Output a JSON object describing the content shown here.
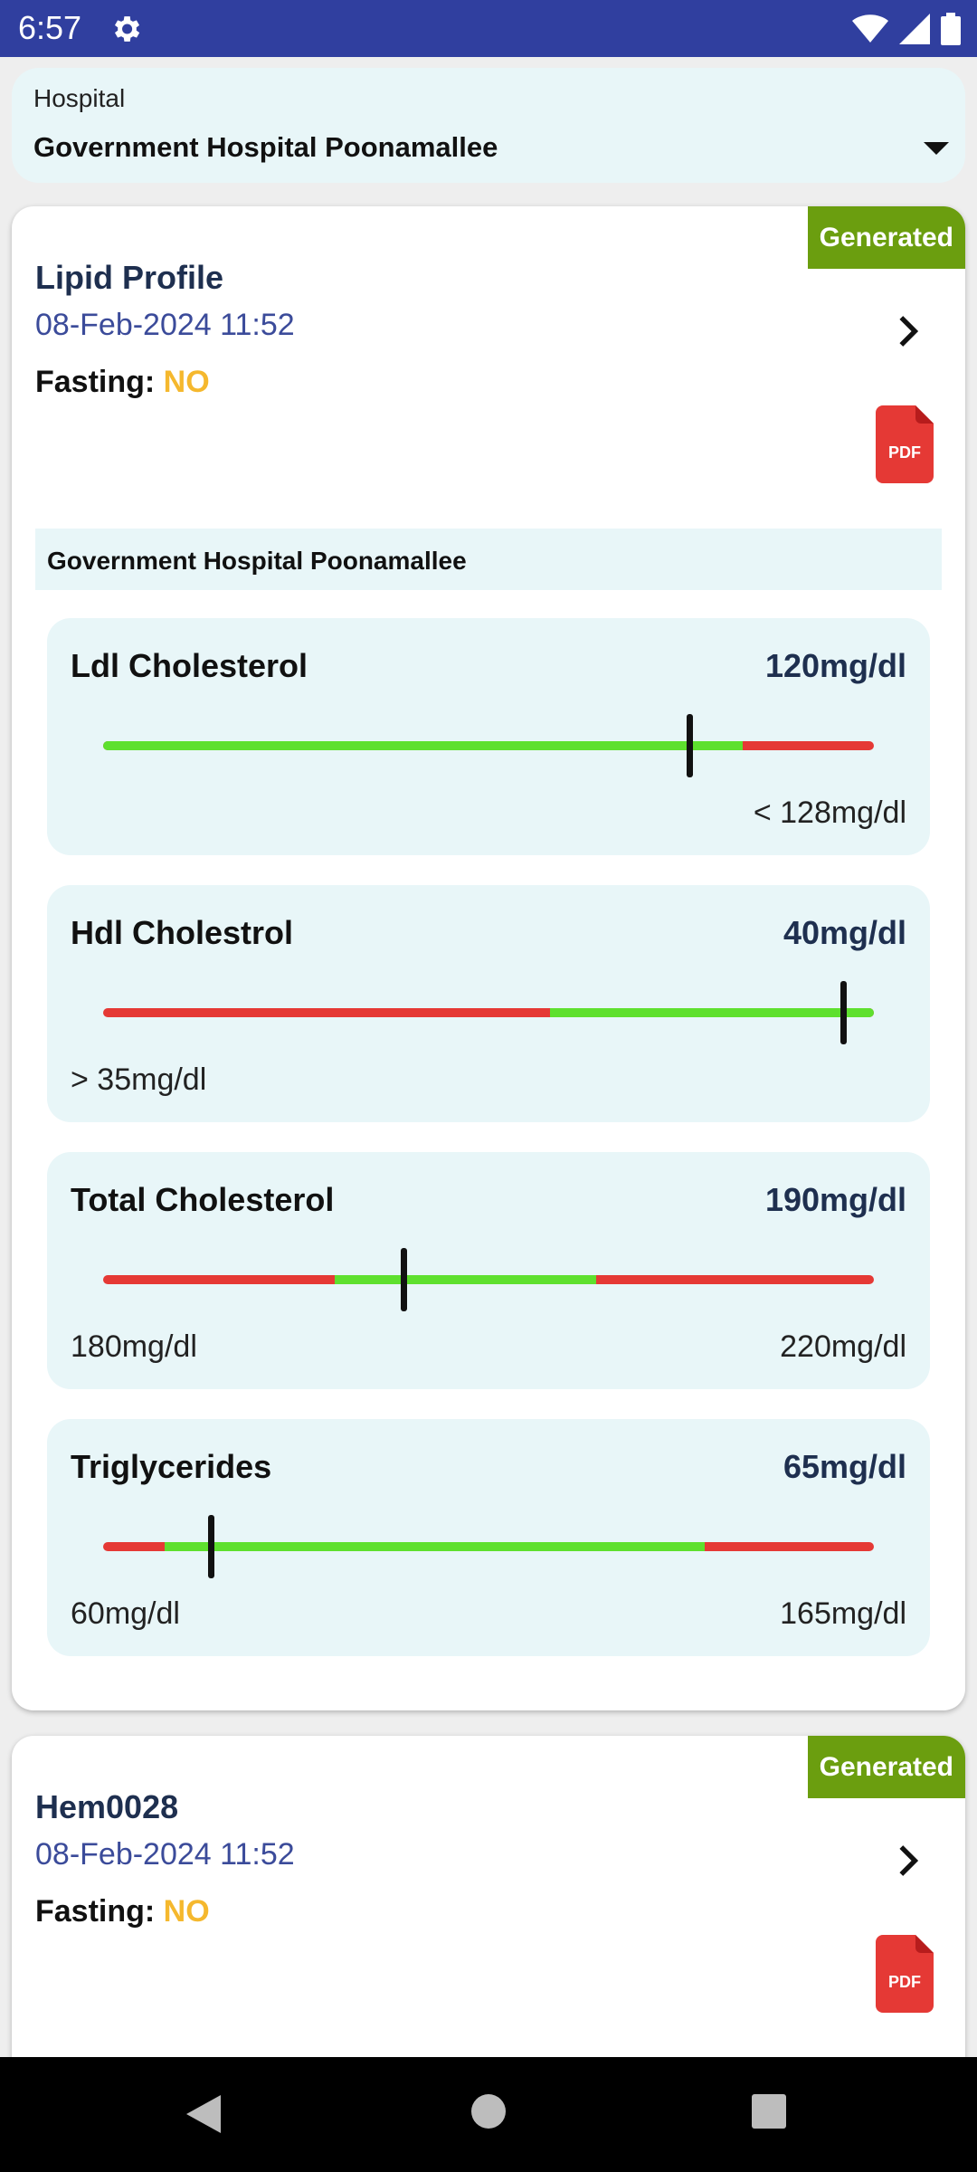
{
  "status_bar": {
    "time": "6:57",
    "settings_icon": "gear-icon",
    "icons": [
      "wifi-icon",
      "cell-signal-icon",
      "battery-icon"
    ]
  },
  "hospital_selector": {
    "label": "Hospital",
    "value": "Government Hospital Poonamallee",
    "icon": "dropdown-caret-icon"
  },
  "colors": {
    "in_range": "#5ee02e",
    "out_of_range": "#e53935",
    "badge": "#6b9e0f",
    "fasting_value": "#f5b82e"
  },
  "reports": [
    {
      "status": "Generated",
      "title": "Lipid Profile",
      "datetime": "08-Feb-2024 11:52",
      "fasting_label": "Fasting:",
      "fasting_value": "NO",
      "pdf_label": "PDF",
      "hospital": "Government Hospital Poonamallee",
      "tests": [
        {
          "name": "Ldl Cholesterol",
          "value": "120mg/dl",
          "range_left": "",
          "range_right": "< 128mg/dl",
          "normal_band": [
            0,
            0.83
          ],
          "marker": 0.76
        },
        {
          "name": "Hdl Cholestrol",
          "value": "40mg/dl",
          "range_left": "> 35mg/dl",
          "range_right": "",
          "normal_band": [
            0.58,
            1.0
          ],
          "marker": 0.96
        },
        {
          "name": "Total Cholesterol",
          "value": "190mg/dl",
          "range_left": "180mg/dl",
          "range_right": "220mg/dl",
          "normal_band": [
            0.3,
            0.64
          ],
          "marker": 0.39
        },
        {
          "name": "Triglycerides",
          "value": "65mg/dl",
          "range_left": "60mg/dl",
          "range_right": "165mg/dl",
          "normal_band": [
            0.08,
            0.78
          ],
          "marker": 0.14
        }
      ]
    },
    {
      "status": "Generated",
      "title": "Hem0028",
      "datetime": "08-Feb-2024 11:52",
      "fasting_label": "Fasting:",
      "fasting_value": "NO",
      "pdf_label": "PDF"
    }
  ],
  "nav_bar": {
    "back": "back-triangle-icon",
    "home": "home-circle-icon",
    "recents": "recents-square-icon"
  }
}
